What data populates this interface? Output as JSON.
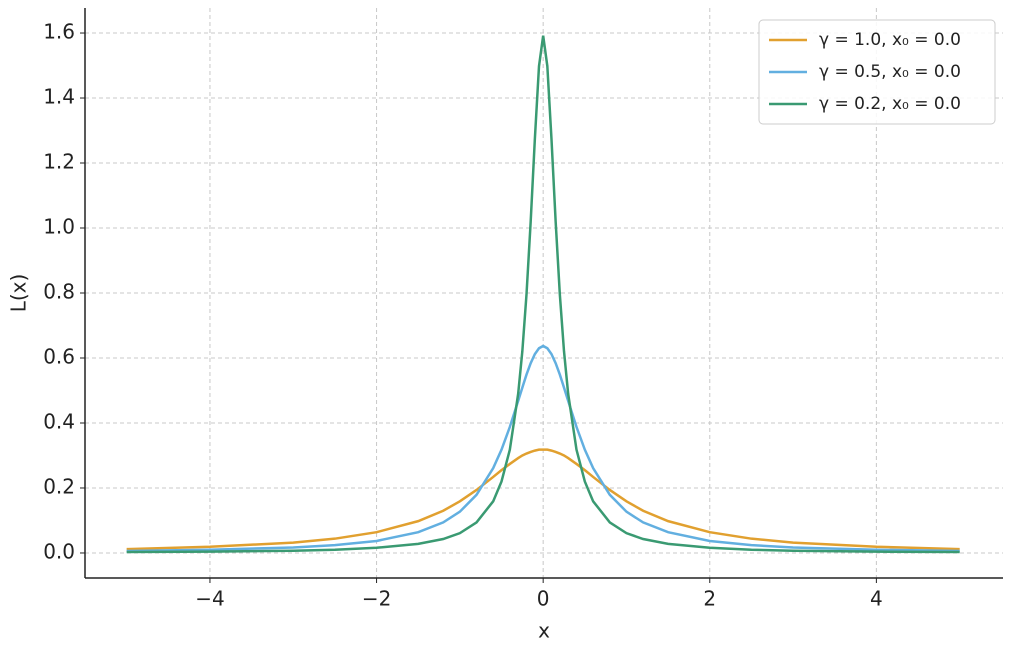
{
  "chart_data": {
    "type": "line",
    "x_label": "x",
    "y_label": "L(x)",
    "x": [
      -5,
      -4,
      -3,
      -2.5,
      -2,
      -1.5,
      -1.2,
      -1,
      -0.8,
      -0.6,
      -0.5,
      -0.4,
      -0.3,
      -0.25,
      -0.2,
      -0.15,
      -0.1,
      -0.05,
      0,
      0.05,
      0.1,
      0.15,
      0.2,
      0.25,
      0.3,
      0.4,
      0.5,
      0.6,
      0.8,
      1,
      1.2,
      1.5,
      2,
      2.5,
      3,
      4,
      5
    ],
    "series": [
      {
        "name": "γ = 1.0, x₀ = 0.0",
        "color": "#e1a02f",
        "values": [
          0.012,
          0.019,
          0.032,
          0.044,
          0.064,
          0.098,
          0.13,
          0.159,
          0.194,
          0.234,
          0.255,
          0.274,
          0.292,
          0.3,
          0.306,
          0.311,
          0.315,
          0.318,
          0.318,
          0.318,
          0.315,
          0.311,
          0.306,
          0.3,
          0.292,
          0.274,
          0.255,
          0.234,
          0.194,
          0.159,
          0.13,
          0.098,
          0.064,
          0.044,
          0.032,
          0.019,
          0.012
        ]
      },
      {
        "name": "γ = 0.5, x₀ = 0.0",
        "color": "#62afe0",
        "values": [
          0.006,
          0.01,
          0.017,
          0.024,
          0.037,
          0.064,
          0.094,
          0.127,
          0.179,
          0.261,
          0.318,
          0.388,
          0.468,
          0.509,
          0.549,
          0.584,
          0.612,
          0.63,
          0.637,
          0.63,
          0.612,
          0.584,
          0.549,
          0.509,
          0.468,
          0.388,
          0.318,
          0.261,
          0.179,
          0.127,
          0.094,
          0.064,
          0.037,
          0.024,
          0.017,
          0.01,
          0.006
        ]
      },
      {
        "name": "γ = 0.2, x₀ = 0.0",
        "color": "#3a9a72",
        "values": [
          0.003,
          0.004,
          0.007,
          0.01,
          0.016,
          0.028,
          0.043,
          0.061,
          0.094,
          0.159,
          0.22,
          0.318,
          0.49,
          0.621,
          0.796,
          1.019,
          1.273,
          1.498,
          1.592,
          1.498,
          1.273,
          1.019,
          0.796,
          0.621,
          0.49,
          0.318,
          0.22,
          0.159,
          0.094,
          0.061,
          0.043,
          0.028,
          0.016,
          0.01,
          0.007,
          0.004,
          0.003
        ]
      }
    ],
    "xlim": [
      -5.5,
      5.52
    ],
    "ylim": [
      -0.077,
      1.677
    ],
    "xticks": [
      {
        "value": -4,
        "label": "−4"
      },
      {
        "value": -2,
        "label": "−2"
      },
      0,
      2,
      4
    ],
    "yticks": [
      {
        "value": 0,
        "label": "0.0"
      },
      {
        "value": 0.2,
        "label": "0.2"
      },
      {
        "value": 0.4,
        "label": "0.4"
      },
      {
        "value": 0.6,
        "label": "0.6"
      },
      {
        "value": 0.8,
        "label": "0.8"
      },
      {
        "value": 1,
        "label": "1.0"
      },
      {
        "value": 1.2,
        "label": "1.2"
      },
      {
        "value": 1.4,
        "label": "1.4"
      },
      {
        "value": 1.6,
        "label": "1.6"
      }
    ],
    "grid": true,
    "legend": "upper right"
  }
}
